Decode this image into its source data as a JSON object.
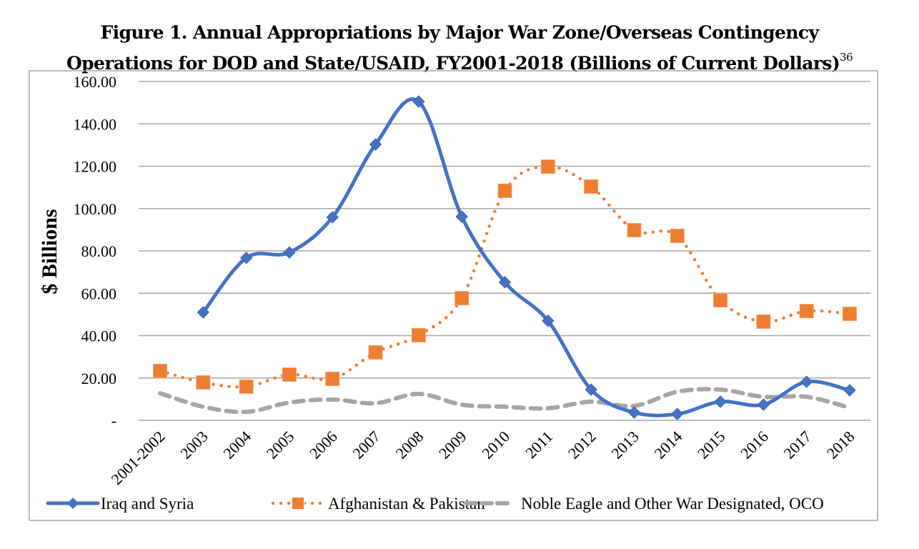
{
  "title": {
    "line1": "Figure 1. Annual Appropriations by Major War Zone/Overseas Contingency",
    "line2": "Operations for DOD and State/USAID, FY2001-2018 (Billions of Current Dollars)",
    "footnote": "36"
  },
  "chart_data": {
    "type": "line",
    "title": "Figure 1. Annual Appropriations by Major War Zone/Overseas Contingency Operations for DOD and State/USAID, FY2001-2018 (Billions of Current Dollars)",
    "xlabel": "",
    "ylabel": "$ Billions",
    "ylim": [
      0,
      160
    ],
    "yticks": [
      0,
      20,
      40,
      60,
      80,
      100,
      120,
      140,
      160
    ],
    "ytick_labels": [
      "-",
      "20.00",
      "40.00",
      "60.00",
      "80.00",
      "100.00",
      "120.00",
      "140.00",
      "160.00"
    ],
    "grid": true,
    "legend_position": "bottom",
    "categories": [
      "2001-2002",
      "2003",
      "2004",
      "2005",
      "2006",
      "2007",
      "2008",
      "2009",
      "2010",
      "2011",
      "2012",
      "2013",
      "2014",
      "2015",
      "2016",
      "2017",
      "2018"
    ],
    "series": [
      {
        "name": "Iraq and Syria",
        "color": "#4472C4",
        "style": "solid",
        "marker": "diamond",
        "values": [
          null,
          51.0,
          76.7,
          79.3,
          95.9,
          130.3,
          150.5,
          96.2,
          65.2,
          47.0,
          14.5,
          3.7,
          3.0,
          8.8,
          7.4,
          18.2,
          14.2
        ]
      },
      {
        "name": "Afghanistan & Pakistan",
        "color": "#ED7D31",
        "style": "dotted",
        "marker": "square",
        "values": [
          23.3,
          17.9,
          15.9,
          21.6,
          19.6,
          32.1,
          40.2,
          57.7,
          108.4,
          119.8,
          110.4,
          89.8,
          87.1,
          56.7,
          46.6,
          51.6,
          50.3
        ]
      },
      {
        "name": "Noble Eagle and Other War Designated, OCO",
        "color": "#A5A5A5",
        "style": "dashed",
        "marker": "none",
        "values": [
          12.8,
          6.4,
          4.0,
          8.4,
          9.8,
          8.1,
          12.5,
          7.4,
          6.4,
          5.7,
          8.8,
          6.8,
          13.5,
          14.5,
          11.1,
          11.1,
          6.0
        ]
      }
    ]
  }
}
